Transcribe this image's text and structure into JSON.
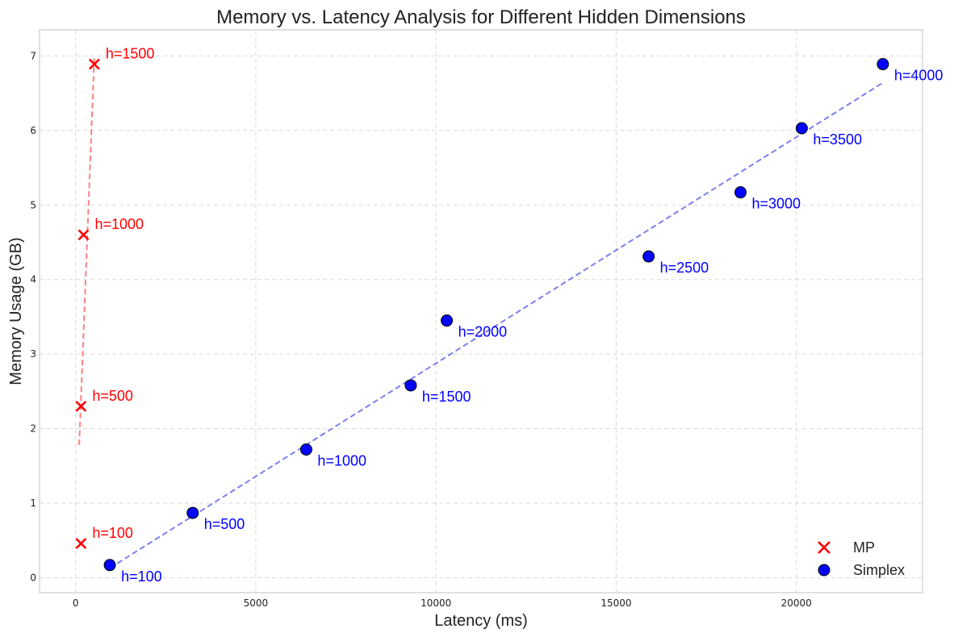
{
  "chart_data": {
    "type": "scatter",
    "title": "Memory vs. Latency Analysis for Different Hidden Dimensions",
    "xlabel": "Latency (ms)",
    "ylabel": "Memory Usage (GB)",
    "xlim": [
      -1000,
      23500
    ],
    "ylim": [
      -0.2,
      7.35
    ],
    "xticks": [
      0,
      5000,
      10000,
      15000,
      20000
    ],
    "yticks": [
      0,
      1,
      2,
      3,
      4,
      5,
      6,
      7
    ],
    "grid": true,
    "legend": "bottom-right",
    "series": [
      {
        "name": "MP",
        "marker": "x",
        "color": "#ff0000",
        "trend_color": "#ff8080",
        "points": [
          {
            "x": 150,
            "y": 0.46,
            "label": "h=100"
          },
          {
            "x": 150,
            "y": 2.3,
            "label": "h=500"
          },
          {
            "x": 220,
            "y": 4.6,
            "label": "h=1000"
          },
          {
            "x": 520,
            "y": 6.89,
            "label": "h=1500"
          }
        ],
        "trend": [
          [
            100,
            1.78
          ],
          [
            520,
            7.0
          ]
        ]
      },
      {
        "name": "Simplex",
        "marker": "o",
        "color": "#0000ff",
        "trend_color": "#7f7fee",
        "points": [
          {
            "x": 950,
            "y": 0.17,
            "label": "h=100"
          },
          {
            "x": 3250,
            "y": 0.87,
            "label": "h=500"
          },
          {
            "x": 6400,
            "y": 1.72,
            "label": "h=1000"
          },
          {
            "x": 9300,
            "y": 2.58,
            "label": "h=1500"
          },
          {
            "x": 10300,
            "y": 3.45,
            "label": "h=2000"
          },
          {
            "x": 15900,
            "y": 4.31,
            "label": "h=2500"
          },
          {
            "x": 18450,
            "y": 5.17,
            "label": "h=3000"
          },
          {
            "x": 20150,
            "y": 6.03,
            "label": "h=3500"
          },
          {
            "x": 22400,
            "y": 6.89,
            "label": "h=4000"
          }
        ],
        "trend": [
          [
            950,
            0.13
          ],
          [
            22400,
            6.64
          ]
        ]
      }
    ]
  }
}
